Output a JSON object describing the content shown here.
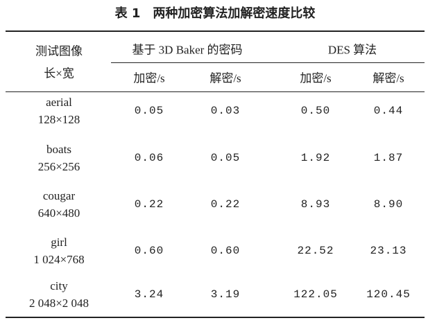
{
  "title": "表 1　两种加密算法加解密速度比较",
  "header": {
    "image": [
      "测试图像",
      "长×宽"
    ],
    "groups": [
      "基于 3D Baker 的密码",
      "DES 算法"
    ],
    "subheaders": [
      "加密/s",
      "解密/s",
      "加密/s",
      "解密/s"
    ]
  },
  "rows": [
    {
      "name": "aerial",
      "size": "128×128",
      "values": [
        "0.05",
        "0.03",
        "0.50",
        "0.44"
      ]
    },
    {
      "name": "boats",
      "size": "256×256",
      "values": [
        "0.06",
        "0.05",
        "1.92",
        "1.87"
      ]
    },
    {
      "name": "cougar",
      "size": "640×480",
      "values": [
        "0.22",
        "0.22",
        "8.93",
        "8.90"
      ]
    },
    {
      "name": "girl",
      "size": "1 024×768",
      "values": [
        "0.60",
        "0.60",
        "22.52",
        "23.13"
      ]
    },
    {
      "name": "city",
      "size": "2 048×2 048",
      "values": [
        "3.24",
        "3.19",
        "122.05",
        "120.45"
      ]
    }
  ]
}
